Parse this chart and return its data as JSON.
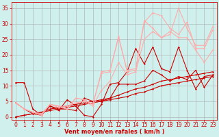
{
  "background_color": "#cff0ec",
  "grid_color": "#aaaaaa",
  "xlabel": "Vent moyen/en rafales ( km/h )",
  "xlabel_color": "#cc0000",
  "xlabel_fontsize": 6,
  "tick_color": "#cc0000",
  "tick_fontsize": 5.5,
  "ylim": [
    -1,
    37
  ],
  "xlim": [
    -0.5,
    23.5
  ],
  "yticks": [
    0,
    5,
    10,
    15,
    20,
    25,
    30,
    35
  ],
  "xticks": [
    0,
    1,
    2,
    3,
    4,
    5,
    6,
    7,
    8,
    9,
    10,
    11,
    12,
    13,
    14,
    15,
    16,
    17,
    18,
    19,
    20,
    21,
    22,
    23
  ],
  "lines": [
    {
      "x": [
        0,
        1,
        2,
        3,
        4,
        5,
        6,
        7,
        8,
        9,
        10,
        11,
        12,
        13,
        14,
        15,
        16,
        17,
        18,
        19,
        20,
        21,
        22,
        23
      ],
      "y": [
        0,
        0.5,
        1.0,
        1.5,
        2.0,
        2.5,
        3.0,
        3.5,
        4.0,
        4.5,
        5.0,
        5.5,
        6.0,
        6.5,
        7.5,
        8.0,
        9.0,
        10.0,
        10.5,
        11.0,
        11.5,
        12.0,
        12.5,
        13.0
      ],
      "color": "#cc0000",
      "lw": 0.8,
      "marker": "D",
      "ms": 1.5
    },
    {
      "x": [
        0,
        1,
        2,
        3,
        4,
        5,
        6,
        7,
        8,
        9,
        10,
        11,
        12,
        13,
        14,
        15,
        16,
        17,
        18,
        19,
        20,
        21,
        22,
        23
      ],
      "y": [
        0,
        0.5,
        1.0,
        1.5,
        2.5,
        3.0,
        3.5,
        4.0,
        4.5,
        5.0,
        5.5,
        6.0,
        7.0,
        8.0,
        9.0,
        9.5,
        10.5,
        11.5,
        12.0,
        12.5,
        13.0,
        13.5,
        14.0,
        14.5
      ],
      "color": "#cc0000",
      "lw": 0.8,
      "marker": "D",
      "ms": 1.5
    },
    {
      "x": [
        0,
        1,
        2,
        3,
        4,
        5,
        6,
        7,
        8,
        9,
        10,
        11,
        12,
        13,
        14,
        15,
        16,
        17,
        18,
        19,
        20,
        21,
        22,
        23
      ],
      "y": [
        4.5,
        2.5,
        1.0,
        0.5,
        3.5,
        2.0,
        5.5,
        3.5,
        0.5,
        0,
        4.0,
        10.5,
        11.0,
        14.5,
        22.0,
        17.0,
        22.5,
        15.5,
        14.5,
        22.5,
        15.0,
        9.0,
        13.0,
        13.5
      ],
      "color": "#cc0000",
      "lw": 0.8,
      "marker": "D",
      "ms": 1.5
    },
    {
      "x": [
        0,
        1,
        2,
        3,
        4,
        5,
        6,
        7,
        8,
        9,
        10,
        11,
        12,
        13,
        14,
        15,
        16,
        17,
        18,
        19,
        20,
        21,
        22,
        23
      ],
      "y": [
        11,
        11,
        2.5,
        0.5,
        3.5,
        2.5,
        2.5,
        2.0,
        6.0,
        5.0,
        5.0,
        6.0,
        10.5,
        10.5,
        10.5,
        11.5,
        15.0,
        13.5,
        11.5,
        13.0,
        12.0,
        15.0,
        9.5,
        13.5
      ],
      "color": "#cc0000",
      "lw": 0.8,
      "marker": "D",
      "ms": 1.5
    },
    {
      "x": [
        0,
        1,
        2,
        3,
        4,
        5,
        6,
        7,
        8,
        9,
        10,
        11,
        12,
        13,
        14,
        15,
        16,
        17,
        18,
        19,
        20,
        21,
        22,
        23
      ],
      "y": [
        4.5,
        2.5,
        1.5,
        0.5,
        4.0,
        3.5,
        2.5,
        6.0,
        5.5,
        4.0,
        14.0,
        14.5,
        26.0,
        14.5,
        15.0,
        30.5,
        33.5,
        32.5,
        28.5,
        26.5,
        30.5,
        22,
        22,
        28
      ],
      "color": "#ffaaaa",
      "lw": 0.8,
      "marker": "D",
      "ms": 1.5
    },
    {
      "x": [
        0,
        1,
        2,
        3,
        4,
        5,
        6,
        7,
        8,
        9,
        10,
        11,
        12,
        13,
        14,
        15,
        16,
        17,
        18,
        19,
        20,
        21,
        22,
        23
      ],
      "y": [
        4.5,
        2.5,
        1.5,
        0.5,
        4.0,
        3.5,
        2.5,
        6.0,
        5.5,
        4.0,
        14.5,
        15.0,
        25.5,
        15.0,
        15.5,
        31.0,
        28.5,
        25.5,
        26.5,
        35.0,
        28.5,
        23,
        23,
        29
      ],
      "color": "#ffaaaa",
      "lw": 0.8,
      "marker": "D",
      "ms": 1.5
    },
    {
      "x": [
        0,
        1,
        2,
        3,
        4,
        5,
        6,
        7,
        8,
        9,
        10,
        11,
        12,
        13,
        14,
        15,
        16,
        17,
        18,
        19,
        20,
        21,
        22,
        23
      ],
      "y": [
        4.5,
        2.5,
        1.5,
        1.0,
        4.0,
        3.0,
        3.5,
        4.5,
        5.0,
        3.5,
        8.5,
        11.5,
        17.5,
        13.5,
        14.5,
        25.0,
        27.5,
        25.5,
        27.5,
        25.5,
        25.5,
        21.5,
        17.5,
        21.5
      ],
      "color": "#ffaaaa",
      "lw": 0.8,
      "marker": "D",
      "ms": 1.5
    }
  ]
}
